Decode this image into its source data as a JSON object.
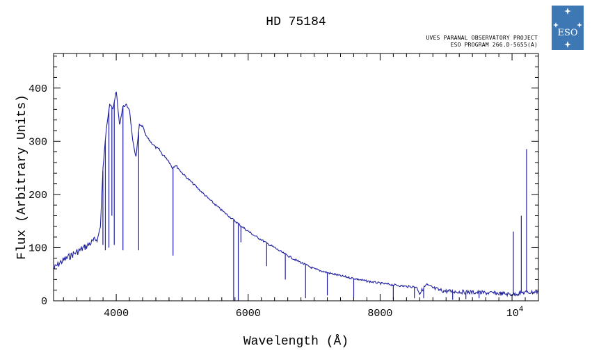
{
  "header": {
    "title": "HD 75184",
    "credit_line1": "UVES PARANAL OBSERVATORY PROJECT",
    "credit_line2": "ESO PROGRAM 266.D-5655(A)",
    "logo_text": "ESO"
  },
  "colors": {
    "series": "#1e1ea0",
    "axes": "#000000",
    "logo_bg": "#3d78b5"
  },
  "chart_data": {
    "type": "line",
    "title": "HD 75184",
    "xlabel": "Wavelength (Å)",
    "ylabel": "Flux (Arbitrary Units)",
    "xlim": [
      3050,
      10400
    ],
    "ylim": [
      0,
      465
    ],
    "xticks": [
      {
        "v": 4000,
        "label": "4000"
      },
      {
        "v": 6000,
        "label": "6000"
      },
      {
        "v": 8000,
        "label": "8000"
      },
      {
        "v": 10000,
        "label": "10",
        "sup": "4"
      }
    ],
    "yticks": [
      0,
      100,
      200,
      300,
      400
    ],
    "grid": false,
    "legend": "none",
    "series": [
      {
        "x": [
          3050,
          3150,
          3250,
          3350,
          3450,
          3550,
          3650,
          3720,
          3760,
          3800,
          3850,
          3900,
          3950,
          4000,
          4050,
          4100,
          4150,
          4200,
          4250,
          4300,
          4350,
          4400,
          4450,
          4500,
          4550,
          4600,
          4650,
          4700,
          4750,
          4800,
          4850,
          4900,
          4950,
          5000,
          5100,
          5200,
          5300,
          5400,
          5500,
          5600,
          5700,
          5800,
          5900,
          6000,
          6100,
          6200,
          6300,
          6400,
          6500,
          6600,
          6700,
          6800,
          6900,
          7000,
          7200,
          7400,
          7600,
          7800,
          8000,
          8200,
          8400,
          8550,
          8600,
          8700,
          8800,
          8900,
          9000,
          9200,
          9400,
          9600,
          9800,
          10000,
          10100,
          10200,
          10300,
          10400
        ],
        "y": [
          60,
          72,
          80,
          88,
          95,
          103,
          112,
          118,
          140,
          250,
          325,
          370,
          360,
          395,
          330,
          365,
          368,
          360,
          300,
          270,
          330,
          328,
          310,
          302,
          295,
          288,
          285,
          275,
          270,
          262,
          250,
          255,
          248,
          240,
          228,
          216,
          204,
          192,
          181,
          170,
          160,
          150,
          140,
          131,
          122,
          115,
          107,
          100,
          92,
          85,
          78,
          72,
          66,
          60,
          53,
          47,
          42,
          37,
          33,
          30,
          27,
          26,
          14,
          30,
          24,
          20,
          18,
          17,
          16,
          15,
          14,
          12,
          14,
          16,
          16,
          17
        ]
      }
    ],
    "absorption": [
      {
        "x": 3798,
        "y": 105
      },
      {
        "x": 3835,
        "y": 95
      },
      {
        "x": 3889,
        "y": 100
      },
      {
        "x": 3934,
        "y": 160
      },
      {
        "x": 3970,
        "y": 105
      },
      {
        "x": 4102,
        "y": 95
      },
      {
        "x": 4340,
        "y": 95
      },
      {
        "x": 4861,
        "y": 85
      },
      {
        "x": 5780,
        "y": 0
      },
      {
        "x": 5850,
        "y": 0
      },
      {
        "x": 5890,
        "y": 110
      },
      {
        "x": 6280,
        "y": 65
      },
      {
        "x": 6563,
        "y": 40
      },
      {
        "x": 6870,
        "y": 5
      },
      {
        "x": 7200,
        "y": 10
      },
      {
        "x": 7600,
        "y": 5
      },
      {
        "x": 8200,
        "y": 3
      },
      {
        "x": 8520,
        "y": 5
      },
      {
        "x": 8660,
        "y": 5
      },
      {
        "x": 9100,
        "y": 2
      },
      {
        "x": 9300,
        "y": 3
      },
      {
        "x": 9500,
        "y": 5
      }
    ],
    "emission": [
      {
        "x": 10020,
        "y": 130
      },
      {
        "x": 10140,
        "y": 160
      },
      {
        "x": 10220,
        "y": 285
      }
    ]
  }
}
